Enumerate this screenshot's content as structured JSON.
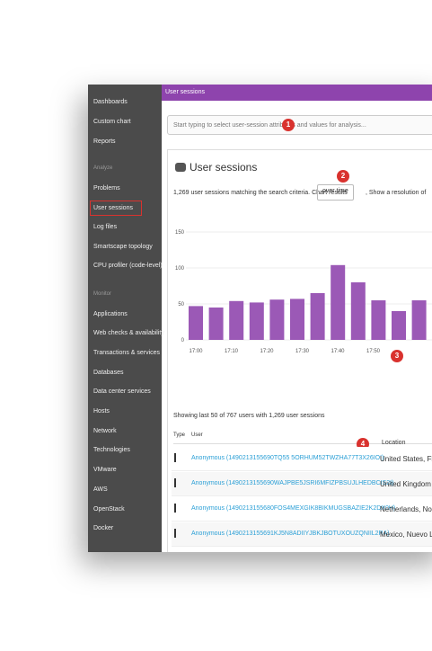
{
  "sidebar": {
    "top": [
      "Dashboards",
      "Custom chart",
      "Reports"
    ],
    "analyze_title": "Analyze",
    "analyze": [
      "Problems",
      "User sessions",
      "Log files",
      "Smartscape topology",
      "CPU profiler (code-level)"
    ],
    "monitor_title": "Monitor",
    "monitor": [
      "Applications",
      "Web checks & availability",
      "Transactions & services",
      "Databases",
      "Data center services",
      "Hosts",
      "Network",
      "Technologies",
      "VMware",
      "AWS",
      "OpenStack",
      "Docker"
    ]
  },
  "header": {
    "title": "User sessions"
  },
  "search": {
    "placeholder": "Start typing to select user-session attributes and values for analysis..."
  },
  "panel": {
    "title": "User sessions",
    "summary": "1,269 user sessions matching the search criteria. Chart results",
    "dropdown": "over time",
    "resolution": ", Show a resolution of",
    "showing": "Showing last 50 of 767 users with 1,269 user sessions",
    "columns": [
      "Type",
      "User",
      "Location"
    ],
    "rows": [
      [
        "Anonymous (1490213155690TQ55 5ORHUM52TWZHA77T3X26IOI)",
        "United States, Fl"
      ],
      [
        "Anonymous (1490213155690WAJPBE5JSRI6MFIZPBSUJLHEDBCIS2I)",
        "United Kingdom"
      ],
      [
        "Anonymous (1490213155680FOS4MEXGIK8BIKMUGSBAZIE2K2DX0H)",
        "Netherlands, Nor"
      ],
      [
        "Anonymous (1490213155691KJ5N8ADIIYJBKJBOTUXOUZQNIIL2RA)",
        "Mexico, Nuevo L"
      ]
    ]
  },
  "badges": [
    "1",
    "2",
    "3",
    "4"
  ],
  "chart_data": {
    "type": "bar",
    "color": "#9b59b6",
    "values": [
      47,
      45,
      54,
      52,
      56,
      57,
      65,
      104,
      80,
      55,
      40,
      55
    ],
    "ylim": [
      0,
      150
    ],
    "yticks": [
      0,
      50,
      100,
      150
    ],
    "xlabels": [
      "17:00",
      "17:10",
      "17:20",
      "17:30",
      "17:40",
      "17:50"
    ],
    "grid": true
  }
}
